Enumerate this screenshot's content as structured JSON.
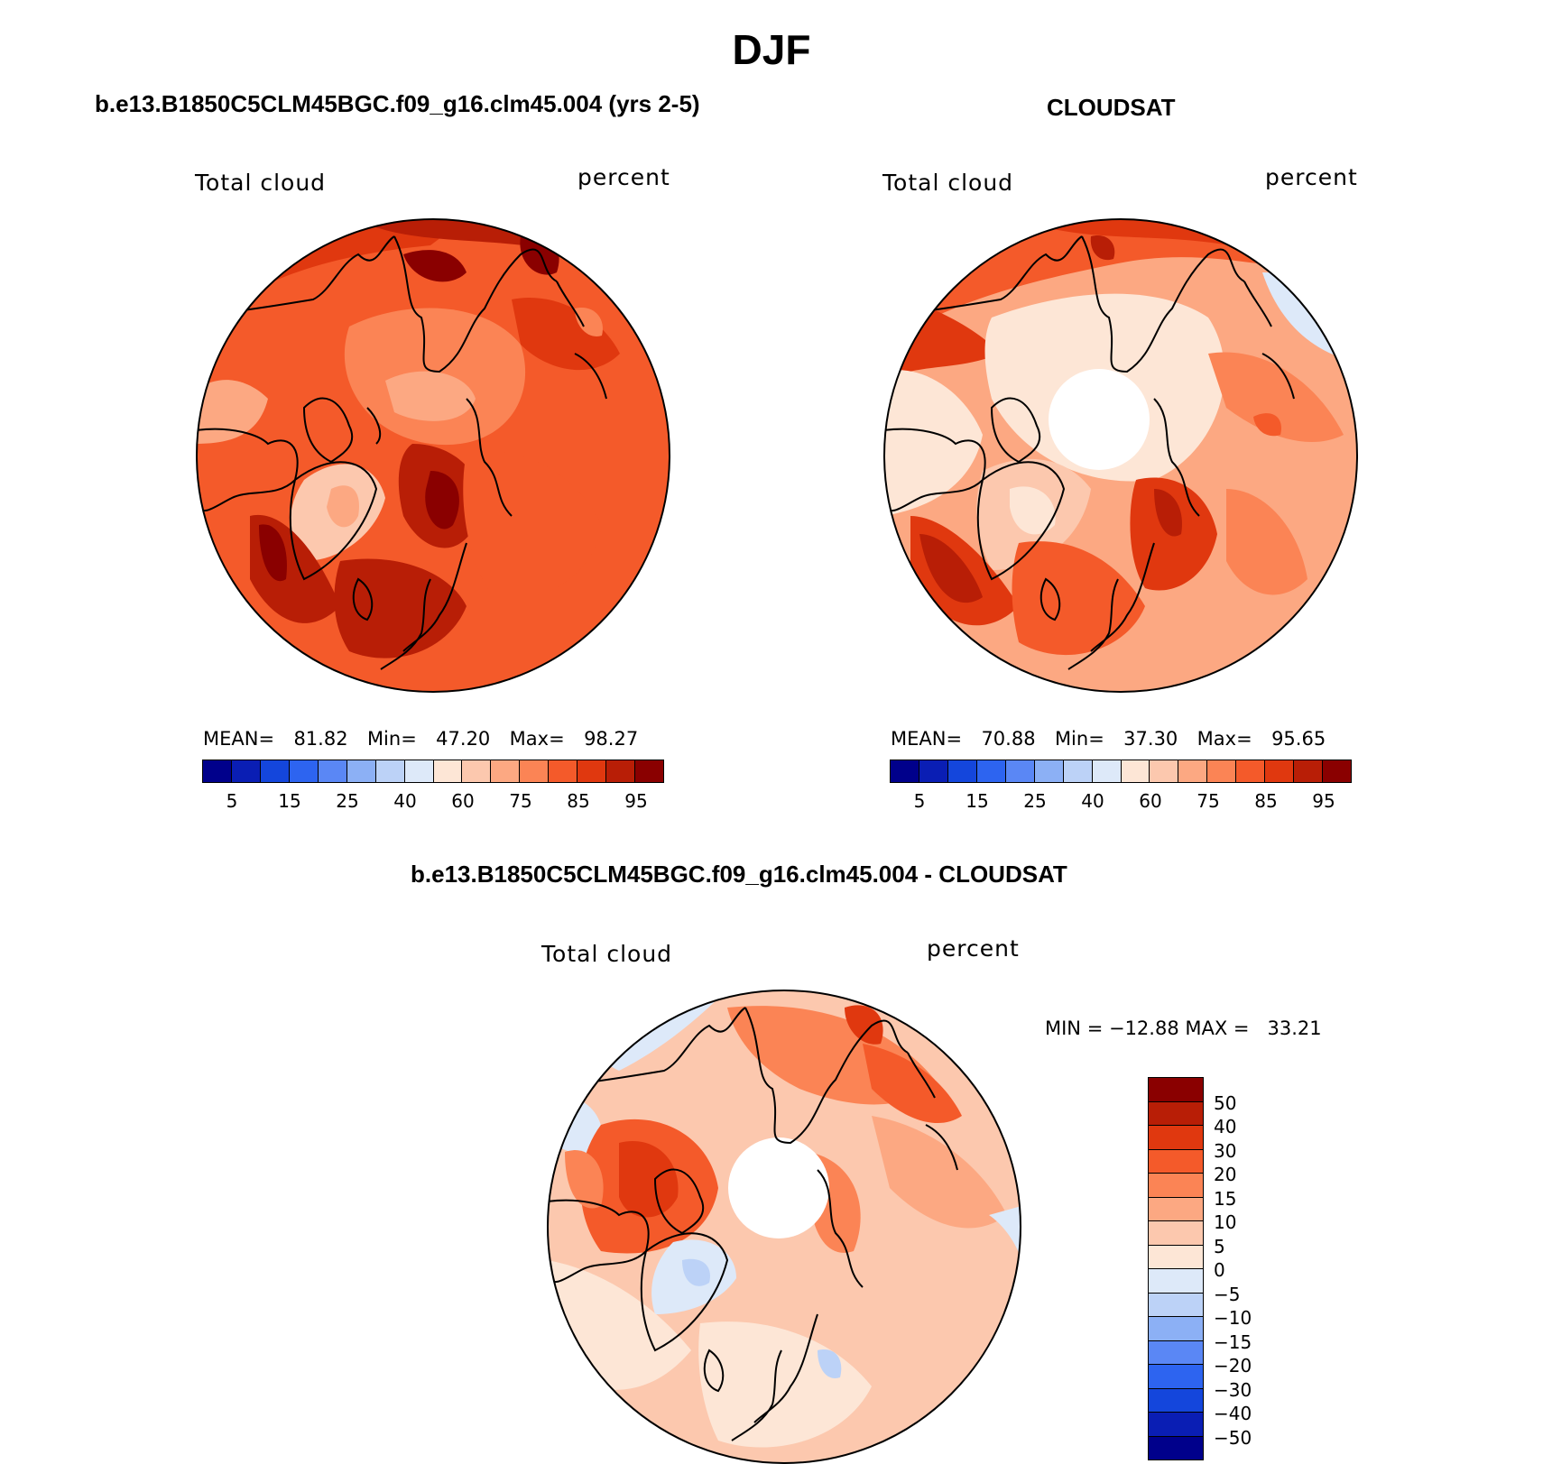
{
  "title": "DJF",
  "panels": [
    {
      "id": "model",
      "title": "b.e13.B1850C5CLM45BGC.f09_g16.clm45.004 (yrs 2-5)",
      "variable": "Total cloud",
      "units": "percent",
      "stats": {
        "mean_label": "MEAN=",
        "mean": "81.82",
        "min_label": "Min=",
        "min": "47.20",
        "max_label": "Max=",
        "max": "98.27"
      },
      "colorbar_ticks": [
        "5",
        "15",
        "25",
        "40",
        "60",
        "75",
        "85",
        "95"
      ]
    },
    {
      "id": "obs",
      "title": "CLOUDSAT",
      "variable": "Total cloud",
      "units": "percent",
      "stats": {
        "mean_label": "MEAN=",
        "mean": "70.88",
        "min_label": "Min=",
        "min": "37.30",
        "max_label": "Max=",
        "max": "95.65"
      },
      "colorbar_ticks": [
        "5",
        "15",
        "25",
        "40",
        "60",
        "75",
        "85",
        "95"
      ]
    },
    {
      "id": "diff",
      "title": "b.e13.B1850C5CLM45BGC.f09_g16.clm45.004 - CLOUDSAT",
      "variable": "Total cloud",
      "units": "percent",
      "stats_text": "MIN = −12.88 MAX =   33.21",
      "colorbar_ticks": [
        "50",
        "40",
        "30",
        "20",
        "15",
        "10",
        "5",
        "0",
        "−5",
        "−10",
        "−15",
        "−20",
        "−30",
        "−40",
        "−50"
      ]
    }
  ],
  "colors": {
    "seq": [
      "#00008b",
      "#0a1eb4",
      "#1446dc",
      "#2d64f0",
      "#5a87f5",
      "#8cb0f5",
      "#bcd2f7",
      "#dde9f9",
      "#fde6d6",
      "#fcc8ae",
      "#fca882",
      "#fb8455",
      "#f45a2a",
      "#e0380f",
      "#b81e06",
      "#8a0000"
    ],
    "div": [
      "#8a0000",
      "#b81e06",
      "#e0380f",
      "#f45a2a",
      "#fb8455",
      "#fca882",
      "#fcc8ae",
      "#fde6d6",
      "#dde9f9",
      "#bcd2f7",
      "#8cb0f5",
      "#5a87f5",
      "#2d64f0",
      "#1446dc",
      "#0a1eb4",
      "#00008b"
    ]
  }
}
